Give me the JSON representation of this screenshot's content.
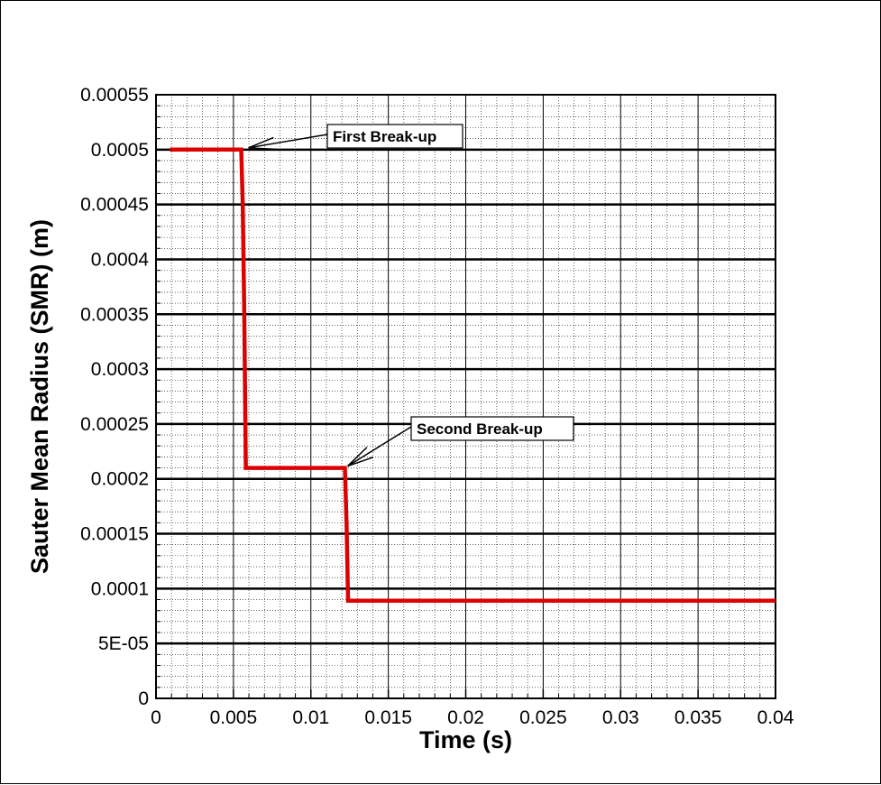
{
  "chart_data": {
    "type": "line",
    "title": "",
    "xlabel": "Time (s)",
    "ylabel": "Sauter Mean Radius (SMR) (m)",
    "xlim": [
      0,
      0.04
    ],
    "ylim": [
      0,
      0.00055
    ],
    "x_ticks": [
      0,
      0.005,
      0.01,
      0.015,
      0.02,
      0.025,
      0.03,
      0.035,
      0.04
    ],
    "x_tick_labels": [
      "0",
      "0.005",
      "0.01",
      "0.015",
      "0.02",
      "0.025",
      "0.03",
      "0.035",
      "0.04"
    ],
    "y_ticks": [
      0,
      5e-05,
      0.0001,
      0.00015,
      0.0002,
      0.00025,
      0.0003,
      0.00035,
      0.0004,
      0.00045,
      0.0005,
      0.00055
    ],
    "y_tick_labels": [
      "0",
      "5E-05",
      "0.0001",
      "0.00015",
      "0.0002",
      "0.00025",
      "0.0003",
      "0.00035",
      "0.0004",
      "0.00045",
      "0.0005",
      "0.00055"
    ],
    "grid": true,
    "series": [
      {
        "color": "#dd0000",
        "x": [
          0.0009,
          0.0055,
          0.0056,
          0.0057,
          0.0058,
          0.0122,
          0.0123,
          0.0124,
          0.04
        ],
        "y": [
          0.0005,
          0.0005,
          0.00045,
          0.00035,
          0.00021,
          0.00021,
          0.00016,
          8.9e-05,
          8.9e-05
        ]
      }
    ],
    "annotations": [
      {
        "text": "First Break-up",
        "target_x": 0.0058,
        "target_y": 0.0005
      },
      {
        "text": "Second Break-up",
        "target_x": 0.0122,
        "target_y": 0.00021
      }
    ]
  }
}
